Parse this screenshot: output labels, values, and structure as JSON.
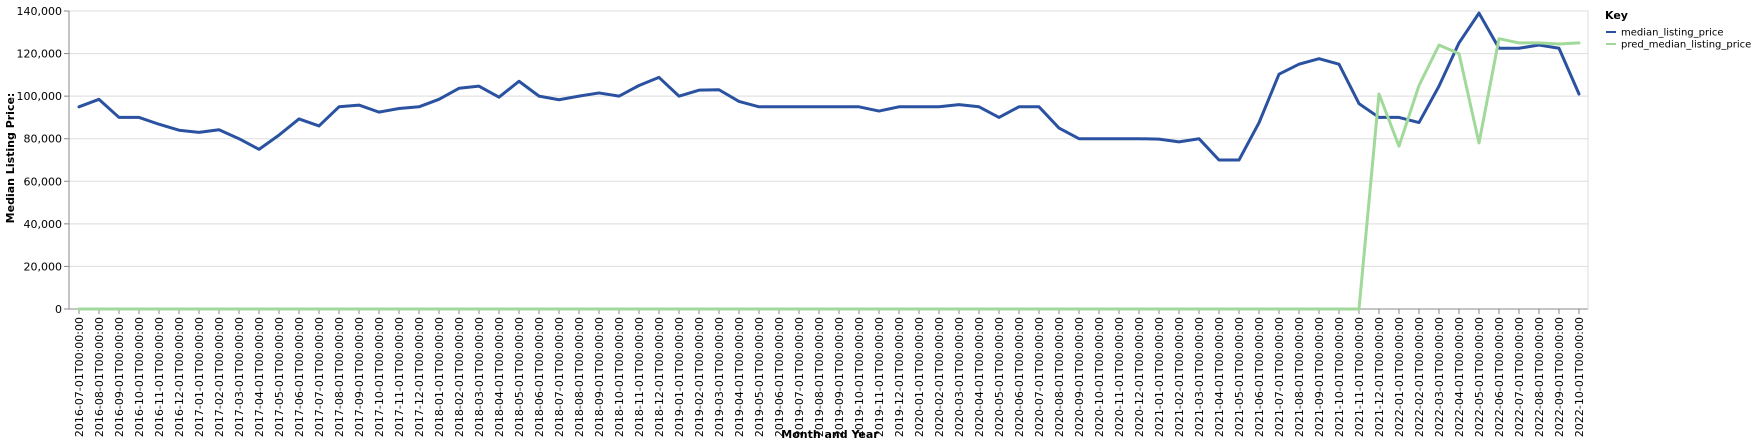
{
  "chart_data": {
    "type": "line",
    "title": "",
    "xlabel": "Month and Year",
    "ylabel": "Median Listing Price:",
    "ylim": [
      0,
      140000
    ],
    "y_ticks": [
      0,
      20000,
      40000,
      60000,
      80000,
      100000,
      120000,
      140000
    ],
    "y_tick_labels": [
      "0",
      "20,000",
      "40,000",
      "60,000",
      "80,000",
      "100,000",
      "120,000",
      "140,000"
    ],
    "grid": true,
    "legend": {
      "title": "Key",
      "placement": "top-right"
    },
    "categories": [
      "2016-07-01T00:00:00",
      "2016-08-01T00:00:00",
      "2016-09-01T00:00:00",
      "2016-10-01T00:00:00",
      "2016-11-01T00:00:00",
      "2016-12-01T00:00:00",
      "2017-01-01T00:00:00",
      "2017-02-01T00:00:00",
      "2017-03-01T00:00:00",
      "2017-04-01T00:00:00",
      "2017-05-01T00:00:00",
      "2017-06-01T00:00:00",
      "2017-07-01T00:00:00",
      "2017-08-01T00:00:00",
      "2017-09-01T00:00:00",
      "2017-10-01T00:00:00",
      "2017-11-01T00:00:00",
      "2017-12-01T00:00:00",
      "2018-01-01T00:00:00",
      "2018-02-01T00:00:00",
      "2018-03-01T00:00:00",
      "2018-04-01T00:00:00",
      "2018-05-01T00:00:00",
      "2018-06-01T00:00:00",
      "2018-07-01T00:00:00",
      "2018-08-01T00:00:00",
      "2018-09-01T00:00:00",
      "2018-10-01T00:00:00",
      "2018-11-01T00:00:00",
      "2018-12-01T00:00:00",
      "2019-01-01T00:00:00",
      "2019-02-01T00:00:00",
      "2019-03-01T00:00:00",
      "2019-04-01T00:00:00",
      "2019-05-01T00:00:00",
      "2019-06-01T00:00:00",
      "2019-07-01T00:00:00",
      "2019-08-01T00:00:00",
      "2019-09-01T00:00:00",
      "2019-10-01T00:00:00",
      "2019-11-01T00:00:00",
      "2019-12-01T00:00:00",
      "2020-01-01T00:00:00",
      "2020-02-01T00:00:00",
      "2020-03-01T00:00:00",
      "2020-04-01T00:00:00",
      "2020-05-01T00:00:00",
      "2020-06-01T00:00:00",
      "2020-07-01T00:00:00",
      "2020-08-01T00:00:00",
      "2020-09-01T00:00:00",
      "2020-10-01T00:00:00",
      "2020-11-01T00:00:00",
      "2020-12-01T00:00:00",
      "2021-01-01T00:00:00",
      "2021-02-01T00:00:00",
      "2021-03-01T00:00:00",
      "2021-04-01T00:00:00",
      "2021-05-01T00:00:00",
      "2021-06-01T00:00:00",
      "2021-07-01T00:00:00",
      "2021-08-01T00:00:00",
      "2021-09-01T00:00:00",
      "2021-10-01T00:00:00",
      "2021-11-01T00:00:00",
      "2021-12-01T00:00:00",
      "2022-01-01T00:00:00",
      "2022-02-01T00:00:00",
      "2022-03-01T00:00:00",
      "2022-04-01T00:00:00",
      "2022-05-01T00:00:00",
      "2022-06-01T00:00:00",
      "2022-07-01T00:00:00",
      "2022-08-01T00:00:00",
      "2022-09-01T00:00:00",
      "2022-10-01T00:00:00"
    ],
    "series": [
      {
        "name": "median_listing_price",
        "color": "#2a52a0",
        "values": [
          95000,
          98500,
          90000,
          90000,
          86800,
          84000,
          83000,
          84200,
          80000,
          75000,
          81700,
          89300,
          86000,
          95000,
          95800,
          92500,
          94200,
          95000,
          98500,
          103700,
          104700,
          99500,
          107000,
          100000,
          98300,
          100000,
          101500,
          100000,
          105000,
          108800,
          100000,
          102800,
          103000,
          97500,
          95000,
          95000,
          95000,
          95000,
          95000,
          95000,
          93000,
          95000,
          95000,
          95000,
          96000,
          95000,
          90000,
          95000,
          95000,
          85000,
          80000,
          80000,
          80000,
          80000,
          79800,
          78500,
          80000,
          70000,
          70000,
          87500,
          110300,
          115000,
          117600,
          115000,
          96500,
          90000,
          90000,
          87600,
          104700,
          125000,
          139000,
          122500,
          122500,
          124000,
          122500,
          101000
        ]
      },
      {
        "name": "pred_median_listing_price",
        "color": "#a1d99b",
        "values": [
          0,
          0,
          0,
          0,
          0,
          0,
          0,
          0,
          0,
          0,
          0,
          0,
          0,
          0,
          0,
          0,
          0,
          0,
          0,
          0,
          0,
          0,
          0,
          0,
          0,
          0,
          0,
          0,
          0,
          0,
          0,
          0,
          0,
          0,
          0,
          0,
          0,
          0,
          0,
          0,
          0,
          0,
          0,
          0,
          0,
          0,
          0,
          0,
          0,
          0,
          0,
          0,
          0,
          0,
          0,
          0,
          0,
          0,
          0,
          0,
          0,
          0,
          0,
          0,
          0,
          101000,
          76500,
          105000,
          124000,
          120000,
          78000,
          127000,
          125000,
          125000,
          124500,
          125000
        ]
      }
    ]
  }
}
